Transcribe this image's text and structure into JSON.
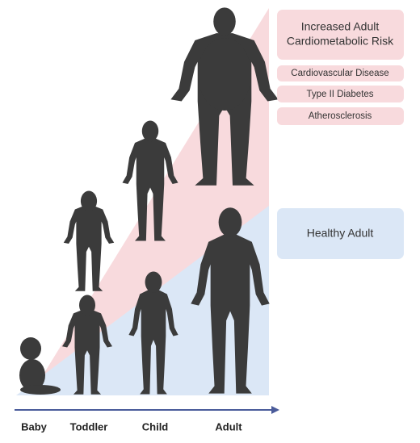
{
  "stages": [
    "Baby",
    "Toddler",
    "Child",
    "Adult"
  ],
  "risk": {
    "title": [
      "Increased Adult",
      "Cardiometabolic Risk"
    ],
    "conditions": [
      "Cardiovascular Disease",
      "Type II Diabetes",
      "Atherosclerosis"
    ]
  },
  "healthy": {
    "title": "Healthy Adult"
  }
}
